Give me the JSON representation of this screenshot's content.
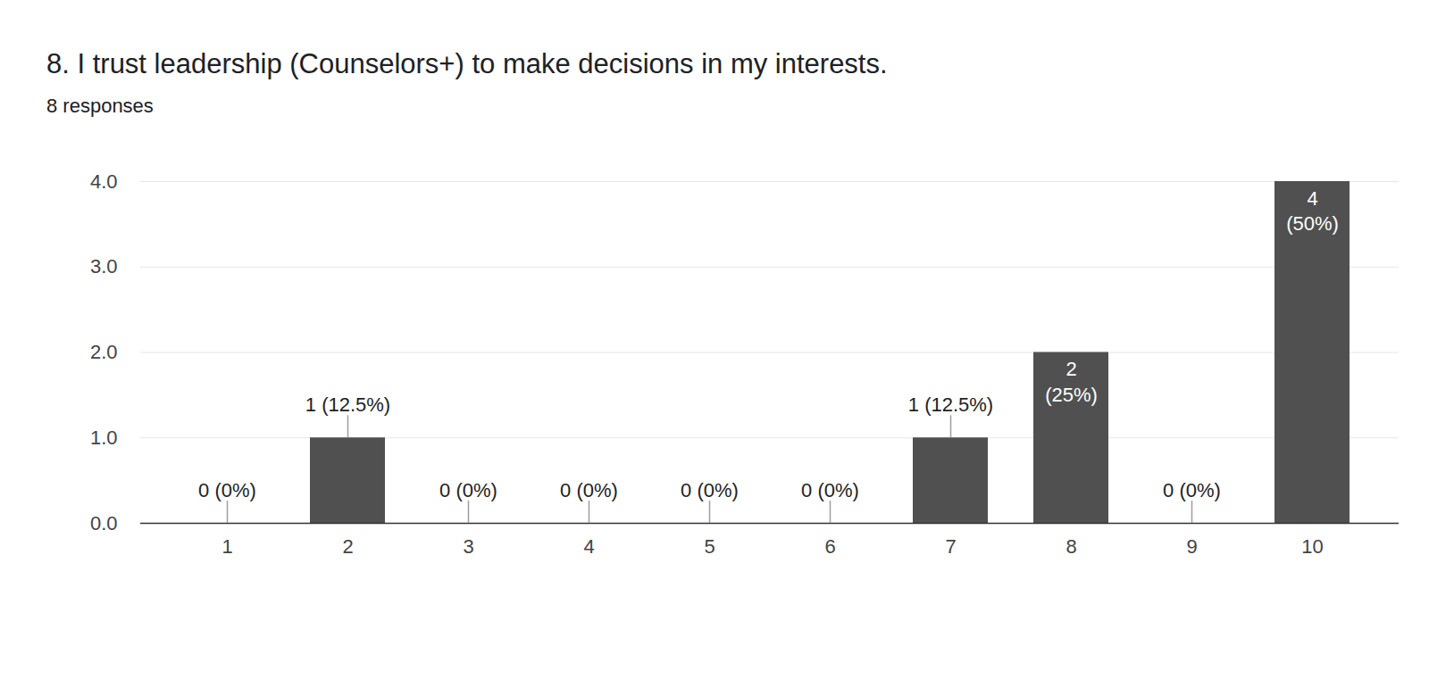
{
  "chart_data": {
    "type": "bar",
    "title": "8. I trust leadership (Counselors+) to make decisions in my interests.",
    "subtitle": "8 responses",
    "categories": [
      1,
      2,
      3,
      4,
      5,
      6,
      7,
      8,
      9,
      10
    ],
    "values": [
      0,
      1,
      0,
      0,
      0,
      0,
      1,
      2,
      0,
      4
    ],
    "value_labels": [
      "0 (0%)",
      "1 (12.5%)",
      "0 (0%)",
      "0 (0%)",
      "0 (0%)",
      "0 (0%)",
      "1 (12.5%)",
      "2 (25%)",
      "0 (0%)",
      "4 (50%)"
    ],
    "color": "#505050",
    "ylim": [
      0,
      4
    ],
    "yticks": [
      0,
      1,
      2,
      3,
      4
    ],
    "grid": true,
    "data_labels": true
  }
}
